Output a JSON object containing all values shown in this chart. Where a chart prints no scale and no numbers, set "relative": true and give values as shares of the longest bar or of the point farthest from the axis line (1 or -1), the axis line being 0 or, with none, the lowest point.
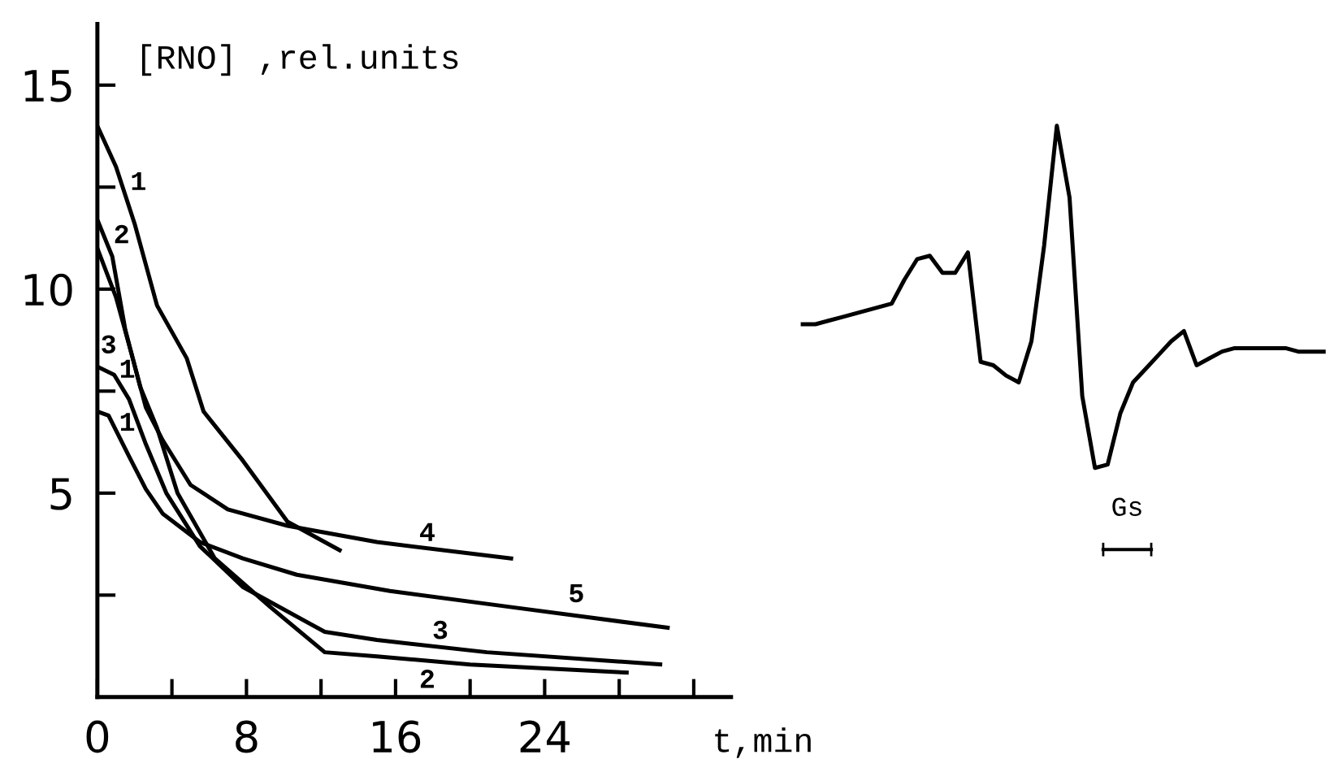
{
  "chart_data": [
    {
      "type": "line",
      "ylabel": "[RNO] ,rel.units",
      "xlabel": "t,min",
      "xlim": [
        0,
        34
      ],
      "ylim": [
        0,
        16.5
      ],
      "xticks": [
        0,
        {
          "value": 4,
          "label": null
        },
        8,
        {
          "value": 12,
          "label": null
        },
        16,
        {
          "value": 20,
          "label": null
        },
        24,
        {
          "value": 28,
          "label": null
        },
        {
          "value": 32,
          "label": null
        }
      ],
      "yticks": [
        {
          "value": 2.5,
          "label": null
        },
        5,
        {
          "value": 7.5,
          "label": null
        },
        10,
        {
          "value": 12.5,
          "label": null
        },
        15
      ],
      "grid": false,
      "legend": false,
      "marker": "none",
      "line_style": "solid",
      "series": [
        {
          "color": "#000000",
          "x": [
            0,
            1.0,
            2.0,
            3.2,
            4.8,
            5.7,
            7.8,
            10.2,
            13
          ],
          "values": [
            14,
            13.0,
            11.6,
            9.6,
            8.3,
            7.0,
            5.8,
            4.3,
            3.6
          ]
        },
        {
          "color": "#000000",
          "x": [
            0,
            1.0,
            1.9,
            2.6,
            3.5,
            5.0,
            7.0,
            10.2,
            15,
            22.2
          ],
          "values": [
            11.0,
            9.8,
            8.3,
            7.1,
            6.3,
            5.2,
            4.6,
            4.2,
            3.8,
            3.4
          ]
        },
        {
          "color": "#000000",
          "x": [
            0,
            0.8,
            1.5,
            2.3,
            3.2,
            4.3,
            6.3,
            9.3,
            12.2,
            15,
            20,
            28.4
          ],
          "values": [
            11.7,
            10.8,
            9.0,
            7.6,
            6.6,
            5.0,
            3.4,
            2.2,
            1.1,
            1.0,
            0.8,
            0.6
          ]
        },
        {
          "color": "#000000",
          "x": [
            0,
            0.9,
            1.7,
            2.6,
            3.7,
            5.5,
            7.8,
            12.2,
            15,
            20.9,
            30.2
          ],
          "values": [
            8.1,
            7.9,
            7.3,
            6.2,
            5.0,
            3.7,
            2.7,
            1.6,
            1.4,
            1.1,
            0.8
          ]
        },
        {
          "color": "#000000",
          "x": [
            0,
            0.6,
            1.7,
            2.6,
            3.5,
            5.5,
            7.8,
            10.7,
            15.7,
            22.3,
            30.6
          ],
          "values": [
            7.0,
            6.9,
            5.9,
            5.1,
            4.5,
            3.8,
            3.4,
            3.0,
            2.6,
            2.2,
            1.7
          ]
        }
      ],
      "annotations": [
        "1",
        "2",
        "3",
        "1",
        "1",
        "4",
        "5",
        "3",
        "2"
      ]
    },
    {
      "type": "line",
      "relative": true,
      "categories": [
        null,
        null,
        null,
        null,
        null,
        null,
        null,
        null,
        null,
        null,
        null,
        null,
        null,
        null,
        null,
        null,
        null,
        null,
        null,
        null,
        null,
        null,
        null,
        null,
        null,
        null,
        null,
        null,
        null,
        null,
        null,
        null,
        null,
        null,
        null,
        null,
        null,
        null,
        null,
        null,
        null,
        null
      ],
      "series": [
        {
          "color": "#000000",
          "values": [
            0.42,
            0.42,
            0.43,
            0.44,
            0.45,
            0.46,
            0.47,
            0.48,
            0.55,
            0.61,
            0.62,
            0.57,
            0.57,
            0.63,
            0.31,
            0.3,
            0.27,
            0.25,
            0.37,
            0.65,
            1,
            0.79,
            0.21,
            0,
            0.01,
            0.16,
            0.25,
            0.29,
            0.33,
            0.37,
            0.4,
            0.3,
            0.32,
            0.34,
            0.35,
            0.35,
            0.35,
            0.35,
            0.35,
            0.34,
            0.34,
            0.34
          ]
        }
      ],
      "annotations": [
        "Gs"
      ]
    }
  ]
}
